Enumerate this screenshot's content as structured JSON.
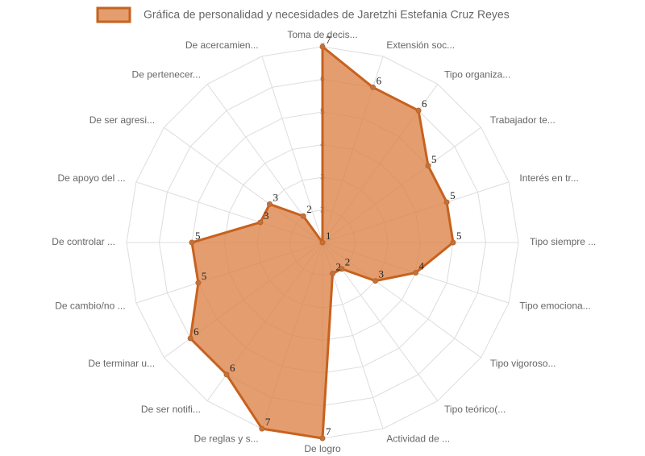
{
  "chart_data": {
    "type": "radar",
    "categories": [
      "Toma de decis...",
      "Extensión soc...",
      "Tipo organiza...",
      "Trabajador te...",
      "Interés en tr...",
      "Tipo siempre ...",
      "Tipo emociona...",
      "Tipo vigoroso...",
      "Tipo teórico(...",
      "Actividad de ...",
      "De logro",
      "De reglas y s...",
      "De ser notifi...",
      "De terminar u...",
      "De cambio/no ...",
      "De controlar ...",
      "De apoyo del ...",
      "De ser agresi...",
      "De pertenecer...",
      "De acercamien..."
    ],
    "series": [
      {
        "name": "Gráfica de personalidad y necesidades de Jaretzhi Estefania Cruz Reyes",
        "color": "#c8611e",
        "values": [
          7,
          6,
          6,
          5,
          5,
          5,
          4,
          3,
          2,
          2,
          7,
          7,
          6,
          6,
          5,
          5,
          3,
          3,
          2,
          1
        ]
      }
    ],
    "ylim": [
      1,
      7
    ],
    "yticks": [
      1,
      2,
      3,
      4,
      5,
      6,
      7
    ],
    "grid": true,
    "legend": "top"
  }
}
